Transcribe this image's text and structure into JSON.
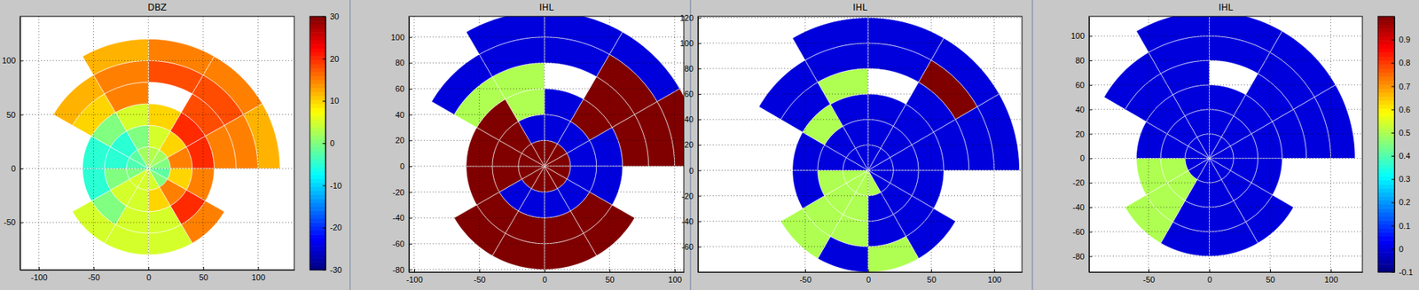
{
  "chart_data": [
    {
      "type": "heatmap",
      "title": "DBZ",
      "xlim": [
        -117,
        133
      ],
      "ylim": [
        -94,
        141
      ],
      "xticks": [
        -100,
        -50,
        0,
        50,
        100
      ],
      "yticks": [
        -50,
        0,
        50,
        100
      ],
      "grid": true,
      "color_range": [
        -30,
        30
      ],
      "color_ticks": [
        -30,
        -20,
        -10,
        0,
        10,
        20,
        30
      ],
      "cells": {
        "azimuth_edges": [
          0,
          30,
          60,
          90,
          120,
          150,
          180,
          210,
          240,
          270,
          300,
          330,
          360
        ],
        "range_edges": [
          0,
          20,
          40,
          60,
          80,
          100,
          120
        ],
        "values": [
          [
            3,
            2,
            0,
            -2,
            0,
            5,
            5,
            5,
            0,
            -3,
            -2,
            2
          ],
          [
            5,
            10,
            15,
            10,
            15,
            10,
            5,
            5,
            0,
            -5,
            -5,
            0
          ],
          [
            10,
            20,
            20,
            15,
            20,
            5,
            5,
            0,
            -5,
            -5,
            0,
            5
          ],
          [
            null,
            18,
            15,
            null,
            15,
            5,
            5,
            5,
            null,
            null,
            10,
            15
          ],
          [
            18,
            18,
            15,
            null,
            null,
            null,
            null,
            null,
            null,
            null,
            12,
            15
          ],
          [
            15,
            15,
            12,
            null,
            null,
            null,
            null,
            null,
            null,
            null,
            null,
            12
          ]
        ]
      }
    },
    {
      "type": "heatmap",
      "title": "IHL",
      "xlim": [
        -104,
        107
      ],
      "ylim": [
        -82,
        116
      ],
      "xticks": [
        -100,
        -50,
        0,
        50,
        100
      ],
      "yticks": [
        -80,
        -60,
        -40,
        -20,
        0,
        20,
        40,
        60,
        80,
        100
      ],
      "grid": true,
      "color_range": [
        -0.1,
        1
      ],
      "cells": {
        "azimuth_edges": [
          0,
          30,
          60,
          90,
          120,
          150,
          180,
          210,
          240,
          270,
          300,
          330,
          360
        ],
        "range_edges": [
          0,
          20,
          40,
          60,
          80,
          100,
          120
        ],
        "values": [
          [
            1,
            1,
            1,
            1,
            1,
            1,
            1,
            1,
            1,
            1,
            1,
            1
          ],
          [
            0,
            0,
            0,
            0,
            0,
            0,
            0,
            0,
            1,
            1,
            1,
            0
          ],
          [
            0,
            1,
            0,
            0,
            1,
            1,
            1,
            1,
            1,
            1,
            1,
            0.5
          ],
          [
            null,
            1,
            1,
            null,
            1,
            1,
            1,
            1,
            null,
            null,
            0.5,
            0.5
          ],
          [
            0,
            1,
            1,
            null,
            null,
            null,
            null,
            null,
            null,
            null,
            0,
            0
          ],
          [
            0,
            0,
            1,
            null,
            null,
            null,
            null,
            null,
            null,
            null,
            null,
            0
          ]
        ]
      }
    },
    {
      "type": "heatmap",
      "title": "IHL",
      "xlim": [
        -135,
        122
      ],
      "ylim": [
        -80,
        121
      ],
      "xticks": [
        -50,
        0,
        50,
        100
      ],
      "yticks": [
        -60,
        -40,
        -20,
        0,
        20,
        40,
        60,
        80,
        100,
        120
      ],
      "grid": true,
      "color_range": [
        -0.1,
        1
      ],
      "cells": {
        "azimuth_edges": [
          0,
          30,
          60,
          90,
          120,
          150,
          180,
          210,
          240,
          270,
          300,
          330,
          360
        ],
        "range_edges": [
          0,
          20,
          40,
          60,
          80,
          100,
          120
        ],
        "values": [
          [
            0,
            0,
            0,
            0,
            0,
            0.5,
            0.5,
            0.5,
            0.5,
            0,
            0,
            0
          ],
          [
            0,
            0,
            0,
            0,
            0,
            0,
            0.5,
            0.5,
            0.5,
            0,
            0,
            0
          ],
          [
            0,
            0,
            0,
            0,
            0,
            0,
            0.5,
            0.5,
            0,
            0,
            0.5,
            0
          ],
          [
            null,
            0,
            0,
            null,
            0,
            0.5,
            0,
            0.5,
            null,
            null,
            0,
            0.5
          ],
          [
            0,
            1,
            0,
            null,
            null,
            null,
            null,
            null,
            null,
            null,
            0,
            0
          ],
          [
            0,
            0,
            0,
            null,
            null,
            null,
            null,
            null,
            null,
            null,
            null,
            0
          ]
        ]
      }
    },
    {
      "type": "heatmap",
      "title": "IHL",
      "xlim": [
        -99,
        126
      ],
      "ylim": [
        -93,
        116
      ],
      "xticks": [
        -50,
        0,
        50,
        100
      ],
      "yticks": [
        -80,
        -60,
        -40,
        -20,
        0,
        20,
        40,
        60,
        80,
        100
      ],
      "grid": true,
      "color_range": [
        -0.1,
        1
      ],
      "color_ticks": [
        -0.1,
        0,
        0.1,
        0.2,
        0.3,
        0.4,
        0.5,
        0.6,
        0.7,
        0.8,
        0.9
      ],
      "cells": {
        "azimuth_edges": [
          0,
          30,
          60,
          90,
          120,
          150,
          180,
          210,
          240,
          270,
          300,
          330,
          360
        ],
        "range_edges": [
          0,
          20,
          40,
          60,
          80,
          100,
          120
        ],
        "values": [
          [
            0,
            0,
            0,
            0,
            0,
            0,
            0,
            0,
            0,
            0,
            0,
            0
          ],
          [
            0,
            0,
            0,
            0,
            0,
            0,
            0,
            0.5,
            0.5,
            0,
            0,
            0
          ],
          [
            0,
            0,
            0,
            0,
            0,
            0,
            0,
            0.5,
            0.5,
            0,
            0,
            0
          ],
          [
            null,
            0,
            0,
            null,
            0,
            0,
            0,
            0.5,
            null,
            null,
            0,
            0
          ],
          [
            0,
            0,
            0,
            null,
            null,
            null,
            null,
            null,
            null,
            null,
            0,
            0
          ],
          [
            0,
            0,
            0,
            null,
            null,
            null,
            null,
            null,
            null,
            null,
            null,
            0
          ]
        ]
      }
    }
  ]
}
